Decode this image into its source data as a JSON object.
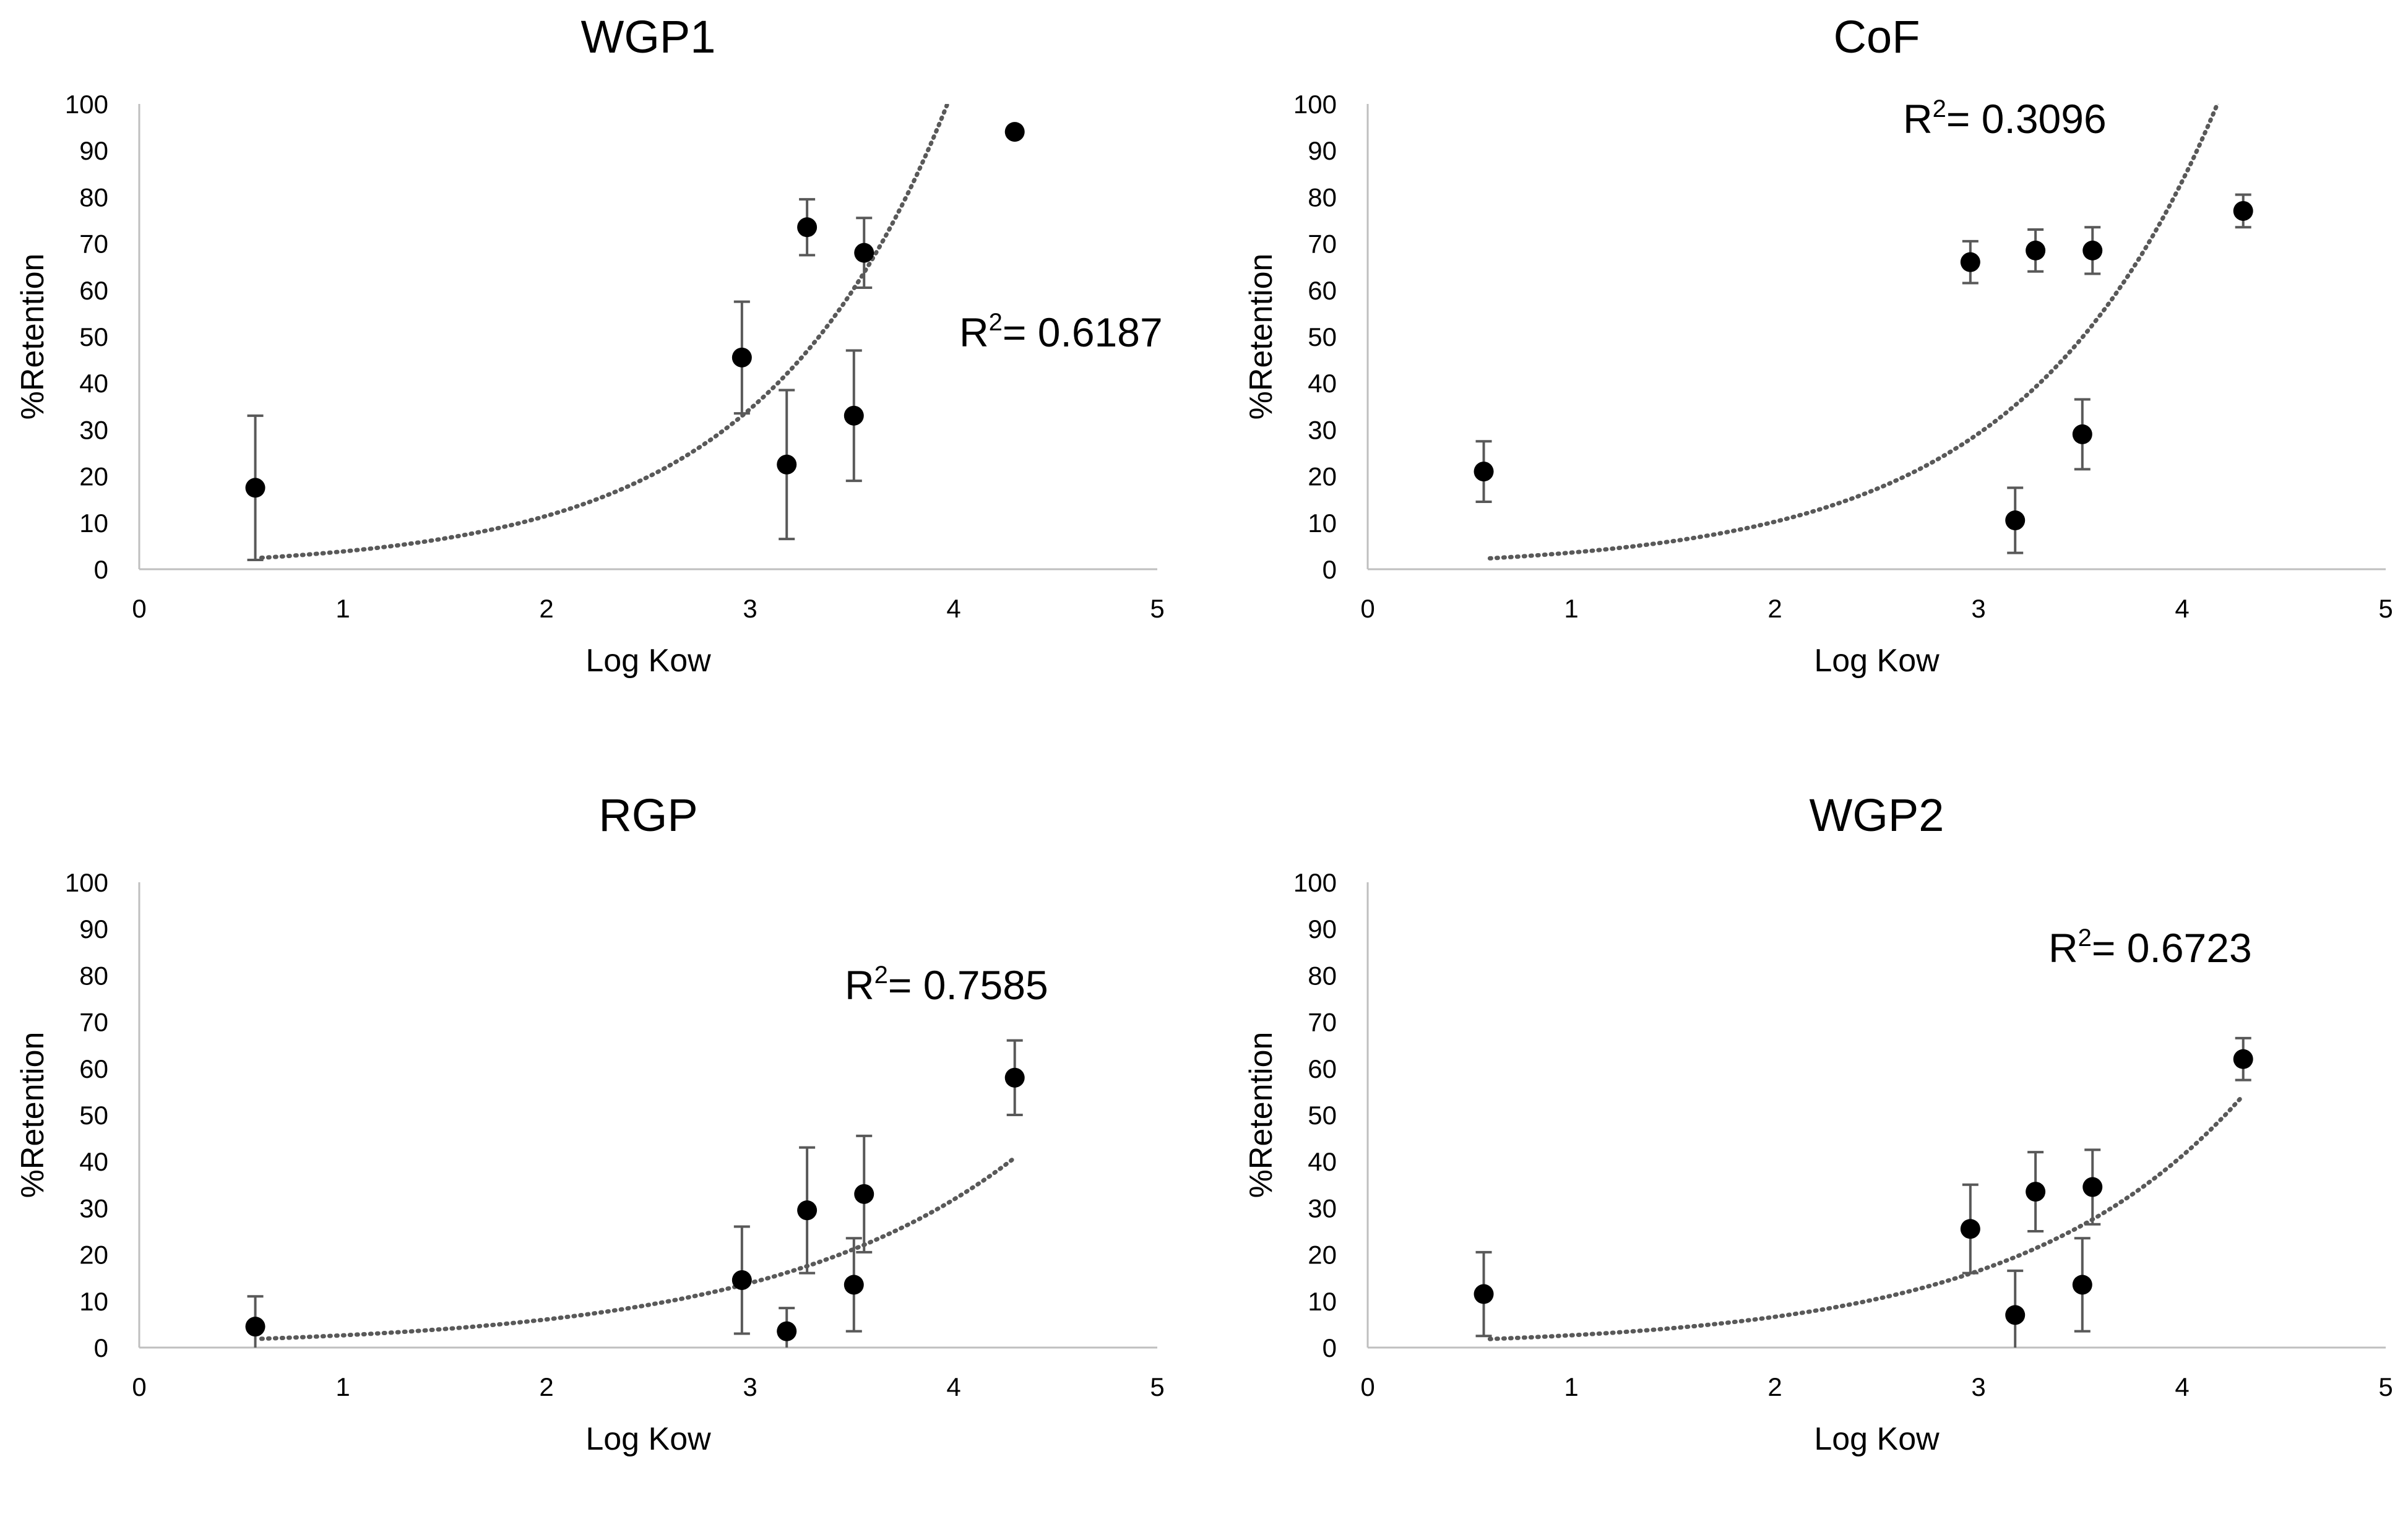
{
  "chart_data": [
    {
      "type": "scatter",
      "title": "WGP1",
      "xlabel": "Log Kow",
      "ylabel": "%Retention",
      "xlim": [
        0,
        5
      ],
      "ylim": [
        0,
        100
      ],
      "xticks": [
        0,
        1,
        2,
        3,
        4,
        5
      ],
      "yticks": [
        0,
        10,
        20,
        30,
        40,
        50,
        60,
        70,
        80,
        90,
        100
      ],
      "grid": false,
      "r2_label": "R",
      "r2_sup": "2",
      "r2_value": "= 0.6187",
      "trend": {
        "type": "exponential",
        "a": 1.27,
        "b": 1.1,
        "x_start": 0.6,
        "x_end": 4.3
      },
      "points": [
        {
          "x": 0.57,
          "y": 17.5,
          "err": 15.5
        },
        {
          "x": 2.96,
          "y": 45.5,
          "err": 12
        },
        {
          "x": 3.18,
          "y": 22.5,
          "err": 16
        },
        {
          "x": 3.28,
          "y": 73.5,
          "err": 6
        },
        {
          "x": 3.51,
          "y": 33,
          "err": 14
        },
        {
          "x": 3.56,
          "y": 68,
          "err": 7.5
        },
        {
          "x": 4.3,
          "y": 94,
          "err": 0
        }
      ]
    },
    {
      "type": "scatter",
      "title": "CoF",
      "xlabel": "Log Kow",
      "ylabel": "%Retention",
      "xlim": [
        0,
        5
      ],
      "ylim": [
        0,
        100
      ],
      "xticks": [
        0,
        1,
        2,
        3,
        4,
        5
      ],
      "yticks": [
        0,
        10,
        20,
        30,
        40,
        50,
        60,
        70,
        80,
        90,
        100
      ],
      "grid": false,
      "r2_label": "R",
      "r2_sup": "2",
      "r2_value": "= 0.3096",
      "trend": {
        "type": "exponential",
        "a": 1.25,
        "b": 1.05,
        "x_start": 0.6,
        "x_end": 4.3
      },
      "points": [
        {
          "x": 0.57,
          "y": 21,
          "err": 6.5
        },
        {
          "x": 2.96,
          "y": 66,
          "err": 4.5
        },
        {
          "x": 3.18,
          "y": 10.5,
          "err": 7
        },
        {
          "x": 3.28,
          "y": 68.5,
          "err": 4.5
        },
        {
          "x": 3.51,
          "y": 29,
          "err": 7.5
        },
        {
          "x": 3.56,
          "y": 68.5,
          "err": 5
        },
        {
          "x": 4.3,
          "y": 77,
          "err": 3.5
        }
      ]
    },
    {
      "type": "scatter",
      "title": "RGP",
      "xlabel": "Log Kow",
      "ylabel": "%Retention",
      "xlim": [
        0,
        5
      ],
      "ylim": [
        0,
        100
      ],
      "xticks": [
        0,
        1,
        2,
        3,
        4,
        5
      ],
      "yticks": [
        0,
        10,
        20,
        30,
        40,
        50,
        60,
        70,
        80,
        90,
        100
      ],
      "grid": false,
      "r2_label": "R",
      "r2_sup": "2",
      "r2_value": "= 0.7585",
      "trend": {
        "type": "exponential",
        "a": 1.15,
        "b": 0.83,
        "x_start": 0.6,
        "x_end": 4.3
      },
      "points": [
        {
          "x": 0.57,
          "y": 4.5,
          "err": 6.5
        },
        {
          "x": 2.96,
          "y": 14.5,
          "err": 11.5
        },
        {
          "x": 3.18,
          "y": 3.5,
          "err": 5
        },
        {
          "x": 3.28,
          "y": 29.5,
          "err": 13.5
        },
        {
          "x": 3.51,
          "y": 13.5,
          "err": 10
        },
        {
          "x": 3.56,
          "y": 33,
          "err": 12.5
        },
        {
          "x": 4.3,
          "y": 58,
          "err": 8
        }
      ]
    },
    {
      "type": "scatter",
      "title": "WGP2",
      "xlabel": "Log Kow",
      "ylabel": "%Retention",
      "xlim": [
        0,
        5
      ],
      "ylim": [
        0,
        100
      ],
      "xticks": [
        0,
        1,
        2,
        3,
        4,
        5
      ],
      "yticks": [
        0,
        10,
        20,
        30,
        40,
        50,
        60,
        70,
        80,
        90,
        100
      ],
      "grid": false,
      "r2_label": "R",
      "r2_sup": "2",
      "r2_value": "= 0.6723",
      "trend": {
        "type": "exponential",
        "a": 1.06,
        "b": 0.915,
        "x_start": 0.6,
        "x_end": 4.3
      },
      "points": [
        {
          "x": 0.57,
          "y": 11.5,
          "err": 9
        },
        {
          "x": 2.96,
          "y": 25.5,
          "err": 9.5
        },
        {
          "x": 3.18,
          "y": 7,
          "err": 9.5
        },
        {
          "x": 3.28,
          "y": 33.5,
          "err": 8.5
        },
        {
          "x": 3.51,
          "y": 13.5,
          "err": 10
        },
        {
          "x": 3.56,
          "y": 34.5,
          "err": 8
        },
        {
          "x": 4.3,
          "y": 62,
          "err": 4.5
        }
      ]
    }
  ]
}
